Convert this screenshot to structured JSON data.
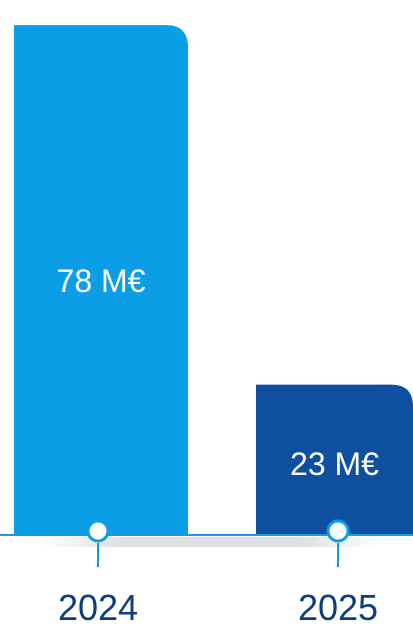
{
  "chart_data": {
    "type": "bar",
    "categories": [
      "2024",
      "2025"
    ],
    "values": [
      78,
      23
    ],
    "value_labels": [
      "78 M€",
      "23 M€"
    ],
    "title": "",
    "xlabel": "",
    "ylabel": "",
    "ylim": [
      0,
      80
    ],
    "grid": false,
    "legend": "none"
  },
  "colors": {
    "bar_2024": "#0B9DE6",
    "bar_2025": "#0F4FA0",
    "baseline": "#0B9DE6",
    "marker": "#0B9DE6",
    "marker_fill": "#ffffff",
    "value_text": "#ffffff",
    "category_text": "#0F3E7A",
    "shadow": "#9AA4AF"
  }
}
